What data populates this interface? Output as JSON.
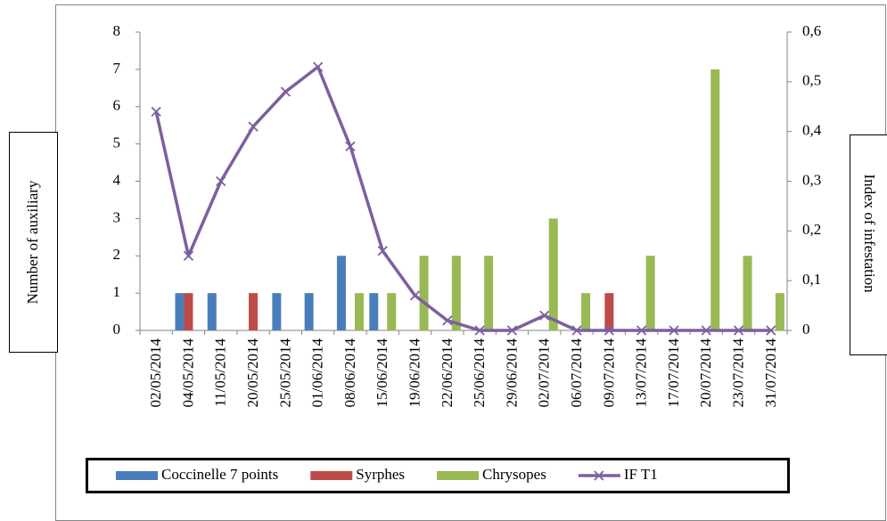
{
  "chart_data": {
    "type": "bar",
    "y_label": "Number of auxiliary",
    "y2_label": "Index of infestation",
    "categories": [
      "02/05/2014",
      "04/05/2014",
      "11/05/2014",
      "20/05/2014",
      "25/05/2014",
      "01/06/2014",
      "08/06/2014",
      "15/06/2014",
      "19/06/2014",
      "22/06/2014",
      "25/06/2014",
      "29/06/2014",
      "02/07/2014",
      "06/07/2014",
      "09/07/2014",
      "13/07/2014",
      "17/07/2014",
      "20/07/2014",
      "23/07/2014",
      "31/07/2014"
    ],
    "series": [
      {
        "name": "Coccinelle 7 points",
        "type": "bar",
        "color": "#4a7ebb",
        "values": [
          0,
          1,
          1,
          0,
          1,
          1,
          2,
          1,
          0,
          0,
          0,
          0,
          0,
          0,
          0,
          0,
          0,
          0,
          0,
          0
        ]
      },
      {
        "name": "Syrphes",
        "type": "bar",
        "color": "#be4b48",
        "values": [
          0,
          1,
          0,
          1,
          0,
          0,
          0,
          0,
          0,
          0,
          0,
          0,
          0,
          0,
          1,
          0,
          0,
          0,
          0,
          0
        ]
      },
      {
        "name": "Chrysopes",
        "type": "bar",
        "color": "#98b954",
        "values": [
          0,
          0,
          0,
          0,
          0,
          0,
          1,
          1,
          2,
          2,
          2,
          0,
          3,
          1,
          0,
          2,
          0,
          7,
          2,
          1
        ]
      },
      {
        "name": "IF T1",
        "type": "line",
        "axis": "y2",
        "color": "#7d5fa0",
        "values": [
          0.44,
          0.15,
          0.3,
          0.41,
          0.48,
          0.53,
          0.37,
          0.16,
          0.07,
          0.02,
          0,
          0,
          0.03,
          0,
          0,
          0,
          0,
          0,
          0,
          0
        ]
      }
    ],
    "ylim": [
      0,
      8
    ],
    "yticks": [
      0,
      1,
      2,
      3,
      4,
      5,
      6,
      7,
      8
    ],
    "y2lim": [
      0,
      0.6
    ],
    "y2ticks": [
      0,
      {
        "value": 0.1,
        "label": "0,1"
      },
      {
        "value": 0.2,
        "label": "0,2"
      },
      {
        "value": 0.3,
        "label": "0,3"
      },
      {
        "value": 0.4,
        "label": "0,4"
      },
      {
        "value": 0.5,
        "label": "0,5"
      },
      {
        "value": 0.6,
        "label": "0,6"
      }
    ],
    "legend": "bottom"
  }
}
